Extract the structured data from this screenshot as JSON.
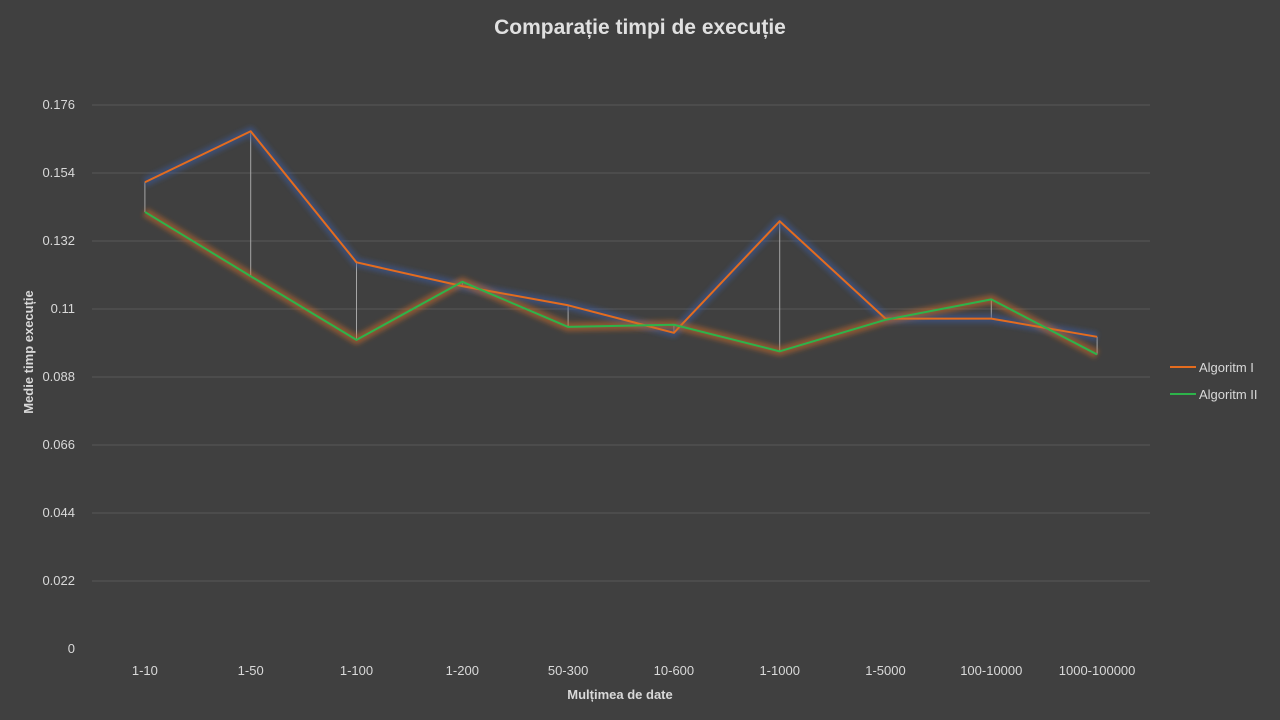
{
  "chart_data": {
    "type": "line",
    "title": "Comparație timpi de execuție",
    "xlabel": "Mulțimea de date",
    "ylabel": "Medie timp execuție",
    "categories": [
      "1-10",
      "1-50",
      "1-100",
      "1-200",
      "50-300",
      "10-600",
      "1-1000",
      "1-5000",
      "100-10000",
      "1000-100000"
    ],
    "y_ticks": [
      "0",
      "0.022",
      "0.044",
      "0.066",
      "0.088",
      "0.11",
      "0.132",
      "0.154",
      "0.176"
    ],
    "ylim": [
      0,
      0.176
    ],
    "grid": true,
    "legend_position": "right",
    "high_low_lines": true,
    "series": [
      {
        "name": "Algoritm I",
        "color": "#E46C1E",
        "values": [
          0.151,
          0.1675,
          0.1251,
          0.1174,
          0.1112,
          0.1023,
          0.1384,
          0.1069,
          0.1069,
          0.101
        ]
      },
      {
        "name": "Algoritm II",
        "color": "#2DB34A",
        "values": [
          0.1414,
          0.1206,
          0.1,
          0.1188,
          0.1042,
          0.1049,
          0.0963,
          0.1065,
          0.1131,
          0.0953
        ]
      }
    ]
  }
}
